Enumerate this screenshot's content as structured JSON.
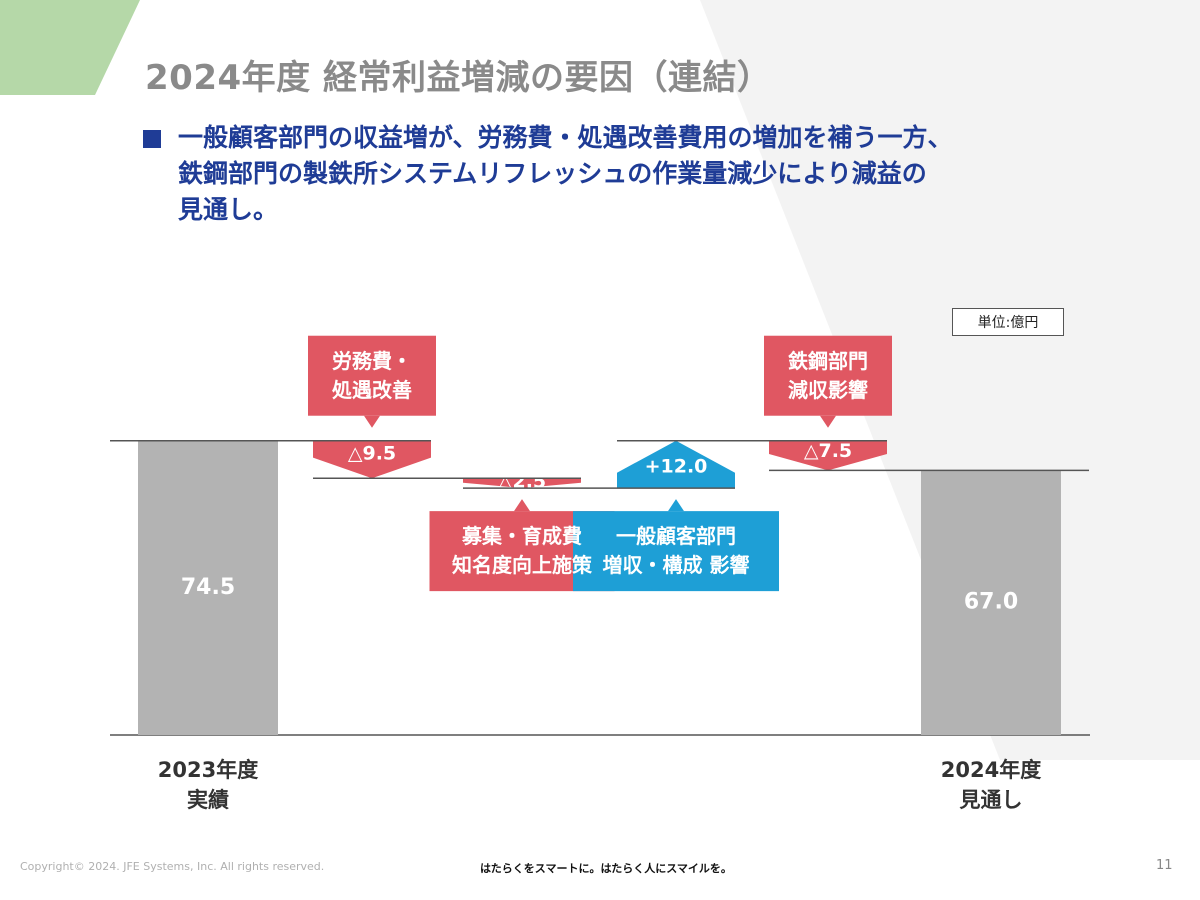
{
  "title": "2024年度 経常利益増減の要因（連結）",
  "bullet": {
    "lines": [
      "一般顧客部門の収益増が、労務費・処遇改善費用の増加を補う一方、",
      "鉄鋼部門の製鉄所システムリフレッシュの作業量減少により減益の",
      "見通し。"
    ]
  },
  "unit_label": "単位:億円",
  "colors": {
    "decrease": "#e05762",
    "increase": "#1e9fd6",
    "total": "#b3b3b3",
    "title": "#8a8a8a",
    "bullet": "#1f3c96"
  },
  "chart_data": {
    "type": "waterfall",
    "steps": [
      {
        "kind": "total",
        "value": 74.5,
        "label": "74.5",
        "category": [
          "2023年度",
          "実績"
        ]
      },
      {
        "kind": "delta",
        "value": -9.5,
        "label": "△9.5",
        "callout": [
          "労務費・",
          "処遇改善"
        ],
        "callout_side": "top"
      },
      {
        "kind": "delta",
        "value": -2.5,
        "label": "△2.5",
        "callout": [
          "募集・育成費",
          "知名度向上施策"
        ],
        "callout_side": "bottom"
      },
      {
        "kind": "delta",
        "value": 12.0,
        "label": "+12.0",
        "callout": [
          "一般顧客部門",
          "増収・構成 影響"
        ],
        "callout_side": "bottom"
      },
      {
        "kind": "delta",
        "value": -7.5,
        "label": "△7.5",
        "callout": [
          "鉄鋼部門",
          "減収影響"
        ],
        "callout_side": "top"
      },
      {
        "kind": "total",
        "value": 67.0,
        "label": "67.0",
        "category": [
          "2024年度",
          "見通し"
        ]
      }
    ]
  },
  "footer": {
    "copyright": "Copyright© 2024. JFE Systems, Inc. All rights reserved.",
    "tagline": "はたらくをスマートに。はたらく人にスマイルを。",
    "page": "11"
  }
}
